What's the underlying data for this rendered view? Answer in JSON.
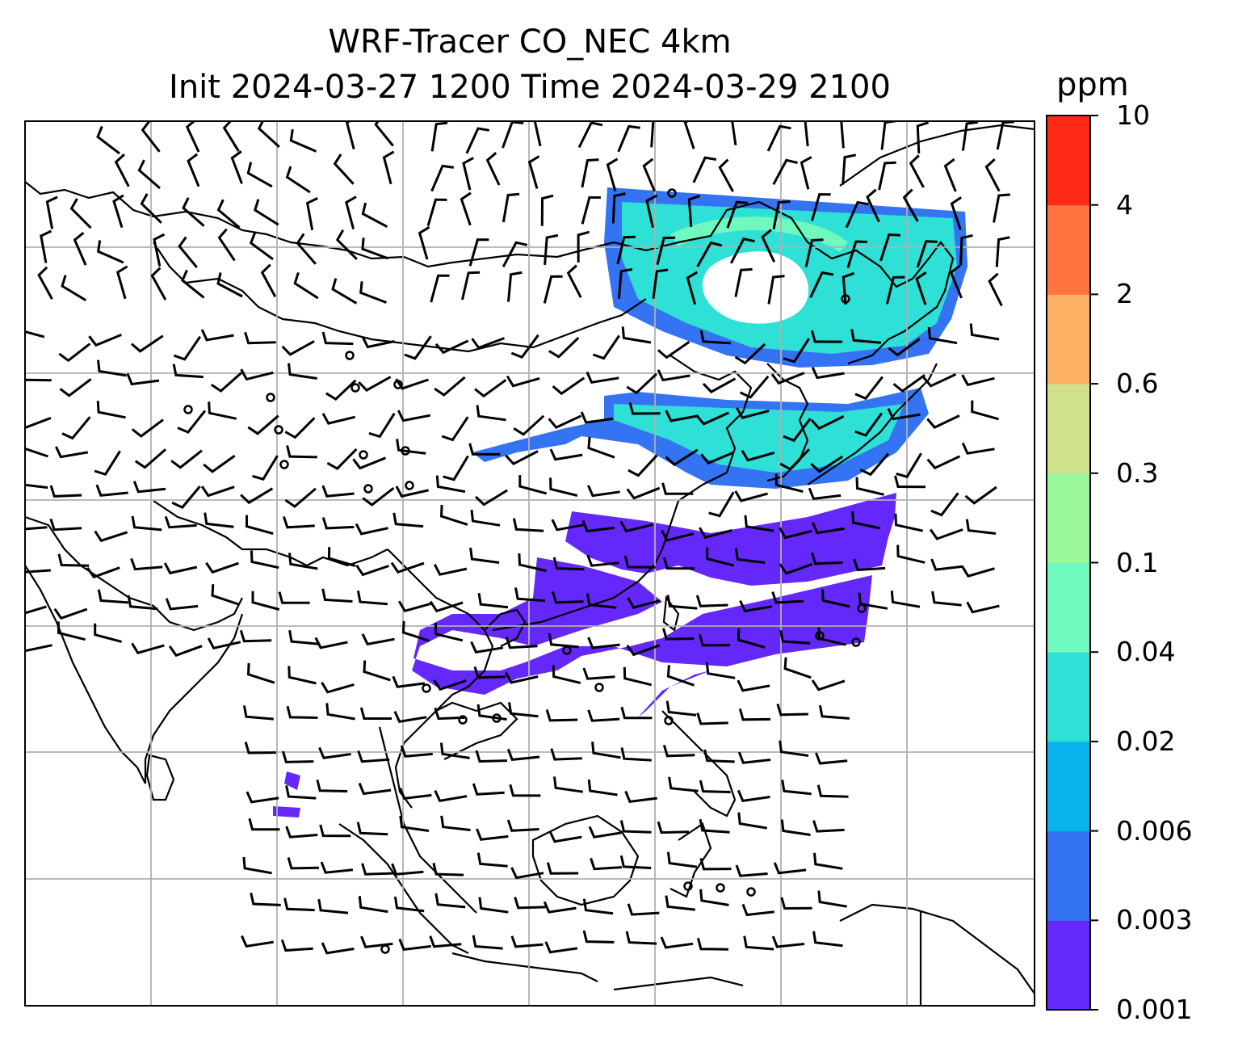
{
  "title": {
    "line1": "WRF-Tracer CO_NEC 4km",
    "line2": "Init 2024-03-27 1200 Time 2024-03-29 2100"
  },
  "colorbar": {
    "unit": "ppm",
    "levels": [
      "0.001",
      "0.003",
      "0.006",
      "0.02",
      "0.04",
      "0.1",
      "0.3",
      "0.6",
      "2",
      "4",
      "10"
    ],
    "colors": [
      "#6528fb",
      "#3473f1",
      "#08b2ea",
      "#2fe0d6",
      "#6ff9be",
      "#9bf79b",
      "#cfe18a",
      "#fdb165",
      "#ff733f",
      "#ff2a16"
    ]
  },
  "map": {
    "projection": "geographic",
    "gridlines": true,
    "coastlines": true,
    "wind_barbs": true,
    "tracer_plumes": [
      "northeast-china-swirl",
      "yellow-sea-band",
      "east-china-sea-band",
      "south-china-band",
      "indochina-patch",
      "philippine-sea-band"
    ]
  }
}
